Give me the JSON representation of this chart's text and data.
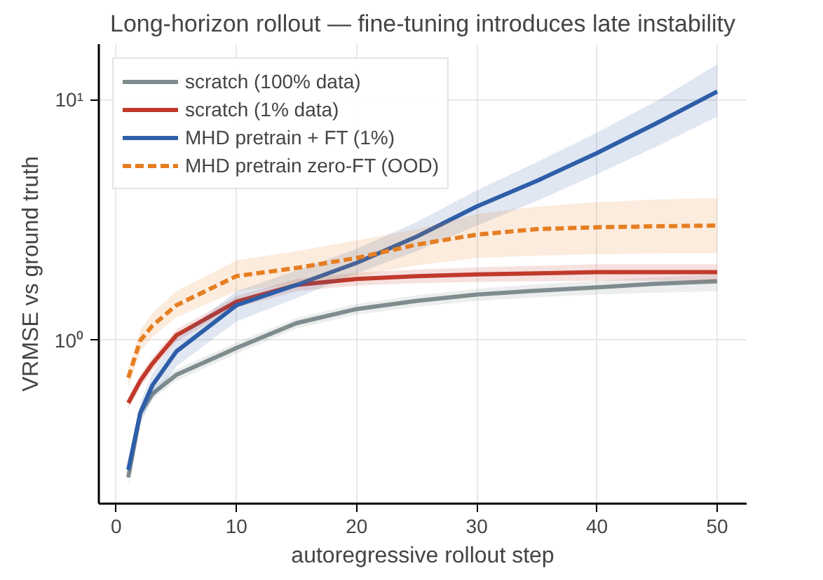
{
  "chart_data": {
    "type": "line",
    "title": "Long-horizon rollout — fine-tuning introduces late instability",
    "xlabel": "autoregressive rollout step",
    "ylabel": "VRMSE vs ground truth",
    "x": [
      1,
      2,
      3,
      5,
      10,
      15,
      20,
      25,
      30,
      35,
      40,
      45,
      50
    ],
    "xlim": [
      -1.45,
      52.45
    ],
    "xticks": [
      0,
      10,
      20,
      30,
      40,
      50
    ],
    "ylim": [
      0.21,
      17
    ],
    "yticks": [
      {
        "value": 1,
        "label": "10⁰"
      },
      {
        "value": 10,
        "label": "10¹"
      }
    ],
    "log": "y",
    "grid": true,
    "legend": "top left",
    "series": [
      {
        "name": "scratch (100% data)",
        "color": "#7f8c8d",
        "line_style": "solid",
        "values": [
          0.27,
          0.5,
          0.6,
          0.72,
          0.93,
          1.18,
          1.35,
          1.46,
          1.55,
          1.61,
          1.66,
          1.72,
          1.76
        ],
        "lower": [
          0.25,
          0.47,
          0.57,
          0.68,
          0.88,
          1.12,
          1.28,
          1.38,
          1.46,
          1.51,
          1.55,
          1.58,
          1.6
        ],
        "upper": [
          0.29,
          0.53,
          0.63,
          0.76,
          0.98,
          1.24,
          1.42,
          1.54,
          1.64,
          1.71,
          1.77,
          1.83,
          1.88
        ]
      },
      {
        "name": "scratch (1% data)",
        "color": "#c0392b",
        "line_style": "solid",
        "values": [
          0.55,
          0.68,
          0.8,
          1.05,
          1.45,
          1.7,
          1.8,
          1.85,
          1.88,
          1.9,
          1.92,
          1.92,
          1.92
        ],
        "lower": [
          0.52,
          0.64,
          0.75,
          0.99,
          1.37,
          1.6,
          1.69,
          1.73,
          1.75,
          1.76,
          1.77,
          1.77,
          1.77
        ],
        "upper": [
          0.58,
          0.72,
          0.85,
          1.11,
          1.53,
          1.8,
          1.91,
          1.97,
          2.01,
          2.04,
          2.07,
          2.07,
          2.07
        ]
      },
      {
        "name": "MHD pretrain + FT (1%)",
        "color": "#2e5ea8",
        "line_style": "solid",
        "values": [
          0.29,
          0.5,
          0.65,
          0.9,
          1.4,
          1.7,
          2.1,
          2.7,
          3.6,
          4.6,
          6.0,
          8.0,
          10.8
        ],
        "lower": [
          0.27,
          0.45,
          0.57,
          0.78,
          1.2,
          1.5,
          1.9,
          2.35,
          3.0,
          3.8,
          4.9,
          6.4,
          8.5
        ],
        "upper": [
          0.31,
          0.55,
          0.73,
          1.02,
          1.6,
          1.95,
          2.4,
          3.1,
          4.2,
          5.5,
          7.3,
          9.9,
          14.0
        ]
      },
      {
        "name": "MHD pretrain zero-FT (OOD)",
        "color": "#e67e22",
        "line_style": "dashed",
        "values": [
          0.7,
          1.0,
          1.15,
          1.4,
          1.85,
          2.0,
          2.2,
          2.5,
          2.75,
          2.9,
          2.95,
          2.98,
          3.0
        ],
        "lower": [
          0.64,
          0.9,
          1.03,
          1.25,
          1.6,
          1.72,
          1.85,
          2.05,
          2.2,
          2.25,
          2.28,
          2.3,
          2.3
        ],
        "upper": [
          0.77,
          1.1,
          1.3,
          1.6,
          2.15,
          2.35,
          2.6,
          2.9,
          3.35,
          3.6,
          3.75,
          3.85,
          3.9
        ]
      }
    ]
  }
}
